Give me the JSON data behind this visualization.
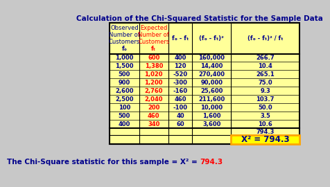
{
  "title": "Calculation of the Chi-Squared Statistic for the Sample Data",
  "title_color": "#00008B",
  "background_color": "#FFFF99",
  "page_background": "#C8C8C8",
  "header_obs": [
    "Observed",
    "Number of",
    "Customers",
    "fₒ"
  ],
  "header_exp": [
    "Expected",
    "Number of",
    "Customers",
    "fₜ"
  ],
  "header_col3": "fₒ - fₜ",
  "header_col4": "(fₒ - fₜ)²",
  "header_col5": "(fₒ - fₜ)² / fₜ",
  "col_headers_blue": "#00008B",
  "col_headers_red": "#FF0000",
  "fo_values": [
    "1,000",
    "1,500",
    "500",
    "900",
    "2,600",
    "2,500",
    "100",
    "500",
    "400"
  ],
  "ft_values": [
    "600",
    "1,380",
    "1,020",
    "1,200",
    "2,760",
    "2,040",
    "200",
    "460",
    "340"
  ],
  "diff_values": [
    "400",
    "120",
    "-520",
    "-300",
    "-160",
    "460",
    "-100",
    "40",
    "60"
  ],
  "diff_sq_values": [
    "160,000",
    "14,400",
    "270,400",
    "90,000",
    "25,600",
    "211,600",
    "10,000",
    "1,600",
    "3,600"
  ],
  "chi_values": [
    "266.7",
    "10.4",
    "265.1",
    "75.0",
    "9.3",
    "103.7",
    "50.0",
    "3.5",
    "10.6"
  ],
  "total": "794.3",
  "chi_sq_label": "X² = 794.3",
  "fo_color": "#00008B",
  "ft_color": "#FF0000",
  "data_color": "#00008B",
  "chi_box_fill": "#FFFF00",
  "chi_box_border": "#FFA500",
  "footer_black": "The Chi-Square statistic for this sample = X² = ",
  "footer_red": "794.3",
  "footer_color_black": "#00008B",
  "footer_color_red": "#FF0000"
}
